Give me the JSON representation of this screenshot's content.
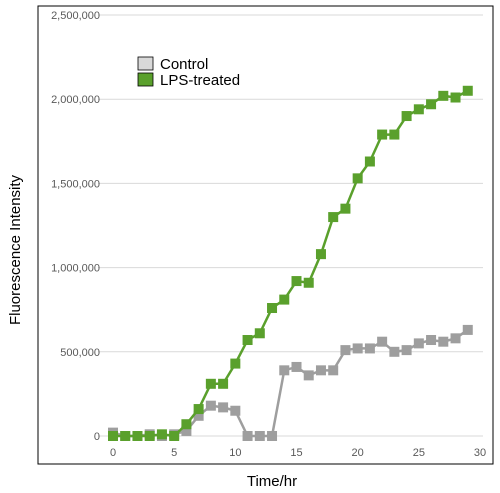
{
  "chart_data": {
    "type": "line",
    "title": "",
    "xlabel": "Time/hr",
    "ylabel": "Fluorescence Intensity",
    "xlim": [
      -1,
      30
    ],
    "ylim": [
      0,
      2500000
    ],
    "x_ticks": [
      0,
      5,
      10,
      15,
      20,
      25,
      30
    ],
    "y_ticks": [
      0,
      500000,
      1000000,
      1500000,
      2000000,
      2500000
    ],
    "x_tick_labels": [
      "0",
      "5",
      "10",
      "15",
      "20",
      "25",
      "30"
    ],
    "y_tick_labels": [
      "0",
      "500,000",
      "1,000,000",
      "1,500,000",
      "2,000,000",
      "2,500,000"
    ],
    "grid": "horizontal",
    "legend_position": "top-left",
    "x": [
      0,
      1,
      2,
      3,
      4,
      5,
      6,
      7,
      8,
      9,
      10,
      11,
      12,
      13,
      14,
      15,
      16,
      17,
      18,
      19,
      20,
      21,
      22,
      23,
      24,
      25,
      26,
      27,
      28,
      29
    ],
    "series": [
      {
        "name": "Control",
        "color": "#9e9e9e",
        "legend_fill": "#d9d9d9",
        "values": [
          20000,
          0,
          0,
          10000,
          0,
          10000,
          30000,
          120000,
          180000,
          170000,
          150000,
          0,
          0,
          0,
          390000,
          410000,
          360000,
          390000,
          390000,
          510000,
          520000,
          520000,
          560000,
          500000,
          510000,
          550000,
          570000,
          560000,
          580000,
          630000
        ]
      },
      {
        "name": "LPS-treated",
        "color": "#5aa02c",
        "legend_fill": "#5aa02c",
        "values": [
          0,
          0,
          0,
          0,
          10000,
          0,
          70000,
          160000,
          310000,
          310000,
          430000,
          570000,
          610000,
          760000,
          810000,
          920000,
          910000,
          1080000,
          1300000,
          1350000,
          1530000,
          1630000,
          1790000,
          1790000,
          1900000,
          1940000,
          1970000,
          2020000,
          2010000,
          2050000
        ]
      }
    ]
  }
}
